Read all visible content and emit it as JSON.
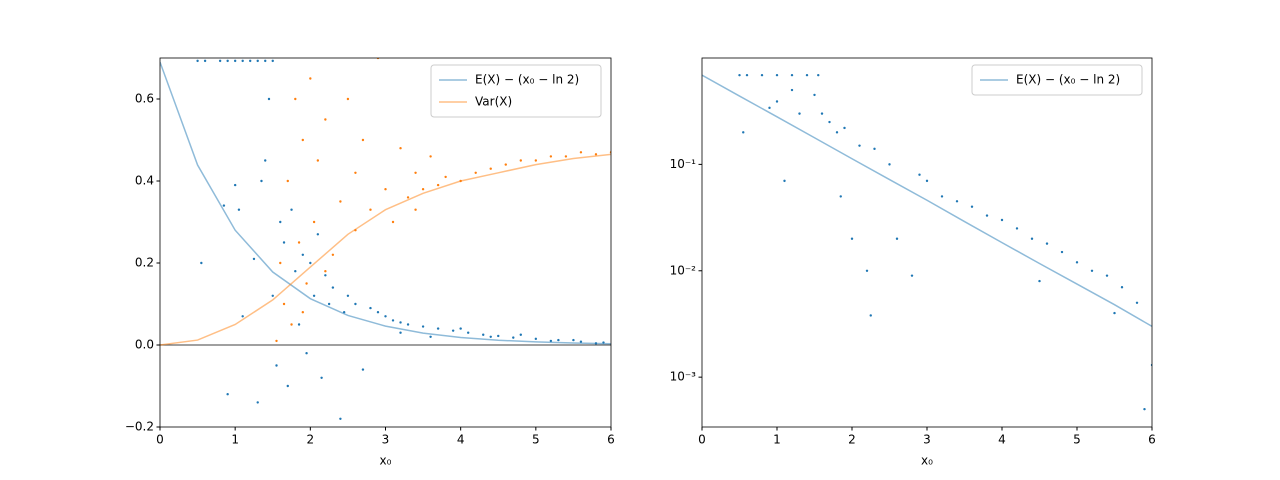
{
  "chart_data": [
    {
      "type": "scatter",
      "xlabel": "x₀",
      "xlim": [
        0,
        6
      ],
      "ylim": [
        -0.2,
        0.7
      ],
      "xticks": [
        0,
        1,
        2,
        3,
        4,
        5,
        6
      ],
      "yticks": [
        {
          "value": -0.2,
          "label": "−0.2"
        },
        {
          "value": 0,
          "label": "0.0"
        },
        0.2,
        0.4,
        0.6
      ],
      "hline": 0,
      "legend": "upper right",
      "series": [
        {
          "name": "E(X) − (x₀ − ln 2)",
          "kind": "line",
          "color": "#1f77b4",
          "x": [
            0,
            0.5,
            1,
            1.5,
            2,
            2.5,
            3,
            3.5,
            4,
            4.5,
            5,
            5.5,
            6
          ],
          "values": [
            0.69,
            0.439,
            0.28,
            0.178,
            0.113,
            0.072,
            0.046,
            0.029,
            0.0184,
            0.0117,
            0.0075,
            0.0048,
            0.003
          ]
        },
        {
          "name": "Var(X)",
          "kind": "line",
          "color": "#ff7f0e",
          "x": [
            0,
            0.5,
            1,
            1.5,
            2,
            2.5,
            3,
            3.5,
            4,
            4.5,
            5,
            5.5,
            6
          ],
          "values": [
            0,
            0.012,
            0.05,
            0.11,
            0.19,
            0.27,
            0.33,
            0.37,
            0.4,
            0.42,
            0.44,
            0.455,
            0.465
          ]
        },
        {
          "kind": "points",
          "color": "#1f77b4",
          "x": [
            0.5,
            0.6,
            0.8,
            0.9,
            1.0,
            1.1,
            1.2,
            1.3,
            1.4,
            1.5,
            0.55,
            0.9,
            1.0,
            0.85,
            1.05,
            1.1,
            1.25,
            1.3,
            1.35,
            1.4,
            1.45,
            1.5,
            1.55,
            1.6,
            1.65,
            1.7,
            1.75,
            1.8,
            1.85,
            1.9,
            1.95,
            2.0,
            2.05,
            2.1,
            2.15,
            2.2,
            2.25,
            2.3,
            2.4,
            2.45,
            2.5,
            2.6,
            2.7,
            2.8,
            2.9,
            3.0,
            3.1,
            3.2,
            3.3,
            3.5,
            3.7,
            3.9,
            4.1,
            4.3,
            4.5,
            4.7,
            5.0,
            5.3,
            5.6,
            5.9,
            3.2,
            3.6,
            4.0,
            4.4,
            4.8,
            5.2,
            5.5,
            5.8
          ],
          "values": [
            0.693,
            0.693,
            0.693,
            0.693,
            0.693,
            0.693,
            0.693,
            0.693,
            0.693,
            0.693,
            0.2,
            -0.12,
            0.39,
            0.34,
            0.33,
            0.07,
            0.21,
            -0.14,
            0.4,
            0.45,
            0.6,
            0.12,
            -0.05,
            0.3,
            0.25,
            -0.1,
            0.33,
            0.18,
            0.05,
            0.22,
            -0.02,
            0.2,
            0.12,
            0.27,
            -0.08,
            0.17,
            0.1,
            0.14,
            -0.18,
            0.08,
            0.12,
            0.1,
            -0.06,
            0.09,
            0.08,
            0.07,
            0.06,
            0.055,
            0.05,
            0.045,
            0.04,
            0.035,
            0.03,
            0.025,
            0.022,
            0.018,
            0.015,
            0.012,
            0.008,
            0.006,
            0.03,
            0.02,
            0.04,
            0.02,
            0.025,
            0.01,
            0.012,
            0.004
          ]
        },
        {
          "kind": "points",
          "color": "#ff7f0e",
          "x": [
            1.55,
            1.6,
            1.65,
            1.7,
            1.75,
            1.8,
            1.85,
            1.9,
            1.95,
            2.0,
            2.05,
            2.1,
            2.2,
            2.3,
            2.4,
            2.5,
            2.6,
            2.7,
            2.8,
            2.9,
            3.0,
            3.1,
            3.2,
            3.3,
            3.4,
            3.5,
            3.6,
            3.7,
            3.8,
            4.0,
            4.2,
            4.4,
            4.6,
            4.8,
            5.0,
            5.2,
            5.4,
            5.6,
            5.8,
            6.0,
            2.2,
            1.9,
            2.6,
            3.4
          ],
          "values": [
            0.01,
            0.2,
            0.1,
            0.4,
            0.05,
            0.6,
            0.25,
            0.5,
            0.15,
            0.65,
            0.3,
            0.45,
            0.55,
            0.22,
            0.35,
            0.6,
            0.28,
            0.5,
            0.33,
            0.7,
            0.38,
            0.3,
            0.48,
            0.36,
            0.42,
            0.38,
            0.46,
            0.39,
            0.41,
            0.4,
            0.42,
            0.43,
            0.44,
            0.45,
            0.45,
            0.46,
            0.46,
            0.47,
            0.465,
            0.47,
            0.18,
            0.08,
            0.42,
            0.33
          ]
        }
      ]
    },
    {
      "type": "scatter",
      "xlabel": "x₀",
      "xlim": [
        0,
        6
      ],
      "ylim": [
        0.00034,
        1.0
      ],
      "log_y": true,
      "xticks": [
        0,
        1,
        2,
        3,
        4,
        5,
        6
      ],
      "yticks": [
        {
          "value": 0.001,
          "label": "10⁻³"
        },
        {
          "value": 0.01,
          "label": "10⁻²"
        },
        {
          "value": 0.1,
          "label": "10⁻¹"
        }
      ],
      "legend": "upper right",
      "series": [
        {
          "name": "E(X) − (x₀ − ln 2)",
          "kind": "line",
          "color": "#1f77b4",
          "x": [
            0,
            0.5,
            1,
            1.5,
            2,
            2.5,
            3,
            3.5,
            4,
            4.5,
            5,
            5.5,
            6
          ],
          "values": [
            0.69,
            0.439,
            0.28,
            0.178,
            0.113,
            0.072,
            0.046,
            0.029,
            0.0184,
            0.0117,
            0.0075,
            0.0048,
            0.003
          ]
        },
        {
          "kind": "points",
          "color": "#1f77b4",
          "x": [
            0.5,
            0.6,
            0.8,
            1.0,
            1.2,
            1.4,
            1.55,
            0.55,
            0.9,
            1.0,
            1.1,
            1.2,
            1.3,
            1.5,
            1.6,
            1.7,
            1.8,
            1.85,
            1.9,
            2.0,
            2.1,
            2.2,
            2.25,
            2.3,
            2.5,
            2.6,
            2.8,
            2.9,
            3.0,
            3.2,
            3.4,
            3.6,
            3.8,
            4.0,
            4.2,
            4.4,
            4.6,
            4.8,
            5.0,
            5.2,
            5.4,
            5.6,
            5.8,
            5.9,
            6.0,
            4.5,
            5.5
          ],
          "values": [
            0.69,
            0.69,
            0.69,
            0.69,
            0.69,
            0.69,
            0.69,
            0.2,
            0.34,
            0.39,
            0.07,
            0.5,
            0.3,
            0.45,
            0.3,
            0.25,
            0.2,
            0.05,
            0.22,
            0.02,
            0.15,
            0.01,
            0.0038,
            0.14,
            0.1,
            0.02,
            0.009,
            0.08,
            0.07,
            0.05,
            0.045,
            0.04,
            0.033,
            0.03,
            0.025,
            0.02,
            0.018,
            0.015,
            0.012,
            0.01,
            0.009,
            0.007,
            0.005,
            0.0005,
            0.0013,
            0.008,
            0.004
          ]
        }
      ]
    }
  ]
}
